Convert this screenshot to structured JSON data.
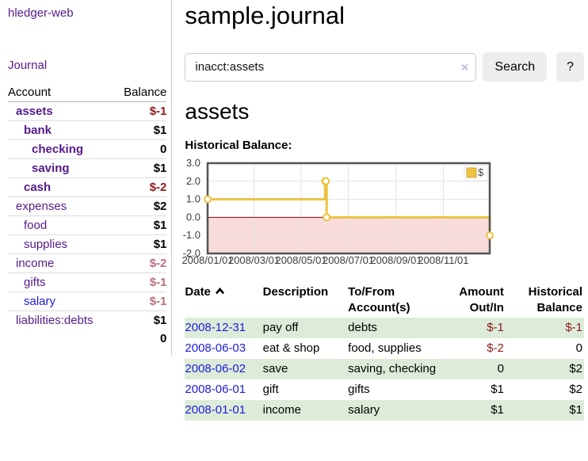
{
  "sidebar": {
    "app_title": "hledger-web",
    "nav": {
      "journal_label": "Journal"
    },
    "accounts_table": {
      "headers": {
        "account": "Account",
        "balance": "Balance"
      },
      "rows": [
        {
          "name": "assets",
          "depth": 1,
          "balance": "$-1",
          "emph": true
        },
        {
          "name": "bank",
          "depth": 2,
          "balance": "$1",
          "emph": true
        },
        {
          "name": "checking",
          "depth": 3,
          "balance": "0",
          "emph": true
        },
        {
          "name": "saving",
          "depth": 3,
          "balance": "$1",
          "emph": true
        },
        {
          "name": "cash",
          "depth": 2,
          "balance": "$-2",
          "emph": true
        },
        {
          "name": "expenses",
          "depth": 1,
          "balance": "$2",
          "emph": false
        },
        {
          "name": "food",
          "depth": 2,
          "balance": "$1",
          "emph": false
        },
        {
          "name": "supplies",
          "depth": 2,
          "balance": "$1",
          "emph": false
        },
        {
          "name": "income",
          "depth": 1,
          "balance": "$-2",
          "emph": false
        },
        {
          "name": "gifts",
          "depth": 2,
          "balance": "$-1",
          "emph": false
        },
        {
          "name": "salary",
          "depth": 2,
          "balance": "$-1",
          "emph": false,
          "blue": true
        },
        {
          "name": "liabilities:debts",
          "depth": 1,
          "balance": "$1",
          "emph": false
        }
      ],
      "total": "0"
    }
  },
  "main": {
    "title": "sample.journal",
    "search": {
      "value": "inacct:assets",
      "clear_icon": "×",
      "search_button": "Search",
      "help_button": "?"
    },
    "account_heading": "assets",
    "chart_label": "Historical Balance:",
    "register_table": {
      "headers": [
        {
          "label": "Date"
        },
        {
          "label": "Description"
        },
        {
          "label": "To/From Account(s)"
        },
        {
          "label": "Amount Out/In"
        },
        {
          "label": "Historical Balance"
        }
      ],
      "rows": [
        {
          "date": "2008-12-31",
          "description": "pay off",
          "accounts": "debts",
          "amount": "$-1",
          "balance": "$-1"
        },
        {
          "date": "2008-06-03",
          "description": "eat & shop",
          "accounts": "food, supplies",
          "amount": "$-2",
          "balance": "0"
        },
        {
          "date": "2008-06-02",
          "description": "save",
          "accounts": "saving, checking",
          "amount": "0",
          "balance": "$2"
        },
        {
          "date": "2008-06-01",
          "description": "gift",
          "accounts": "gifts",
          "amount": "$1",
          "balance": "$2"
        },
        {
          "date": "2008-01-01",
          "description": "income",
          "accounts": "salary",
          "amount": "$1",
          "balance": "$1"
        }
      ]
    }
  },
  "chart_data": {
    "type": "line",
    "title": "Historical Balance",
    "step": "after",
    "series": [
      {
        "name": "$",
        "color": "#edc240",
        "points": [
          [
            "2008-01-01",
            1
          ],
          [
            "2008-06-01",
            2
          ],
          [
            "2008-06-02",
            2
          ],
          [
            "2008-06-03",
            0
          ],
          [
            "2008-12-31",
            -1
          ]
        ]
      }
    ],
    "x_range": [
      "2008-01-01",
      "2008-12-31"
    ],
    "xticks": [
      "2008/01/01",
      "2008/03/01",
      "2008/05/01",
      "2008/07/01",
      "2008/09/01",
      "2008/11/01"
    ],
    "yticks": [
      3.0,
      2.0,
      1.0,
      0.0,
      -1.0,
      -2.0
    ],
    "ylim": [
      -2,
      3
    ],
    "grid": true,
    "negative_region_color": "#f9dbdb",
    "zero_line_color": "#8b0000",
    "grid_color": "#e3e3e3",
    "border_color": "#545454",
    "legend": {
      "label": "$",
      "position": "top-right"
    }
  },
  "colors": {
    "link_purple": "#551a8b",
    "link_blue": "#1c1cdb",
    "negative_strong": "#8b1a1a",
    "negative_soft": "#b9707a",
    "row_stripe_green": "#ddecd8",
    "series_gold": "#edc240"
  }
}
